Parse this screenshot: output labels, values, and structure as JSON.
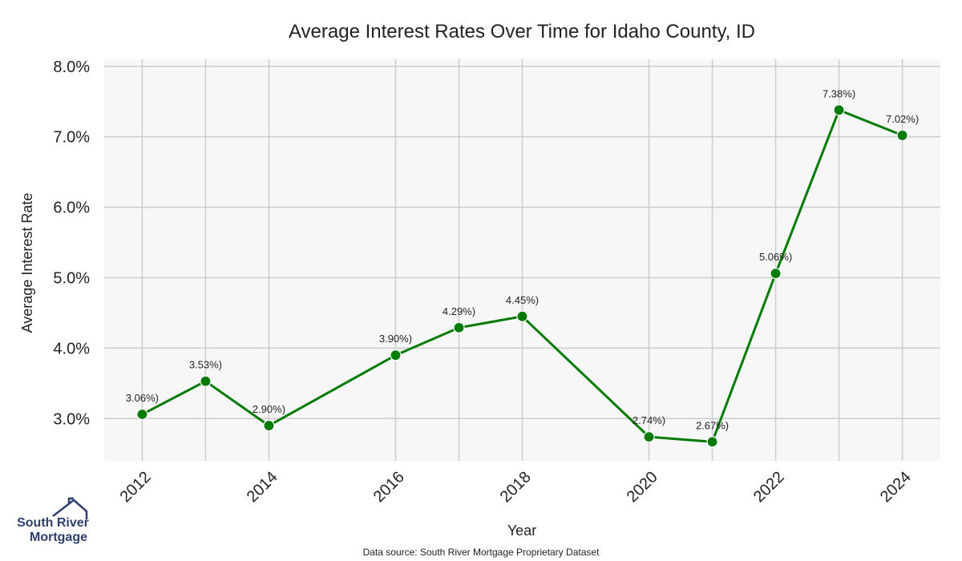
{
  "chart_data": {
    "type": "line",
    "title": "Average Interest Rates Over Time for Idaho County, ID",
    "xlabel": "Year",
    "ylabel": "Average Interest Rate",
    "source": "Data source: South River Mortgage Proprietary Dataset",
    "x": [
      2012,
      2013,
      2014,
      2016,
      2017,
      2018,
      2020,
      2021,
      2022,
      2023,
      2024
    ],
    "values": [
      3.06,
      3.53,
      2.9,
      3.9,
      4.29,
      4.45,
      2.74,
      2.67,
      5.06,
      7.38,
      7.02
    ],
    "data_labels": [
      "3.06%)",
      "3.53%)",
      "2.90%)",
      "3.90%)",
      "4.29%)",
      "4.45%)",
      "2.74%)",
      "2.67%)",
      "5.06%)",
      "7.38%)",
      "7.02%)"
    ],
    "xticks": [
      "2012",
      "2014",
      "2016",
      "2018",
      "2020",
      "2022",
      "2024"
    ],
    "yticks": [
      "3.0%",
      "4.0%",
      "5.0%",
      "6.0%",
      "7.0%",
      "8.0%"
    ],
    "ytick_values": [
      3.0,
      4.0,
      5.0,
      6.0,
      7.0,
      8.0
    ],
    "xlim": [
      2011.4,
      2024.6
    ],
    "ylim": [
      2.4,
      8.1
    ],
    "grid": true,
    "line_color": "#007a00",
    "plot_background": "#f7f7f7"
  },
  "logo": {
    "line1": "South River",
    "line2": "Mortgage",
    "icon": "house-roof-icon",
    "color": "#2c3f6e"
  }
}
